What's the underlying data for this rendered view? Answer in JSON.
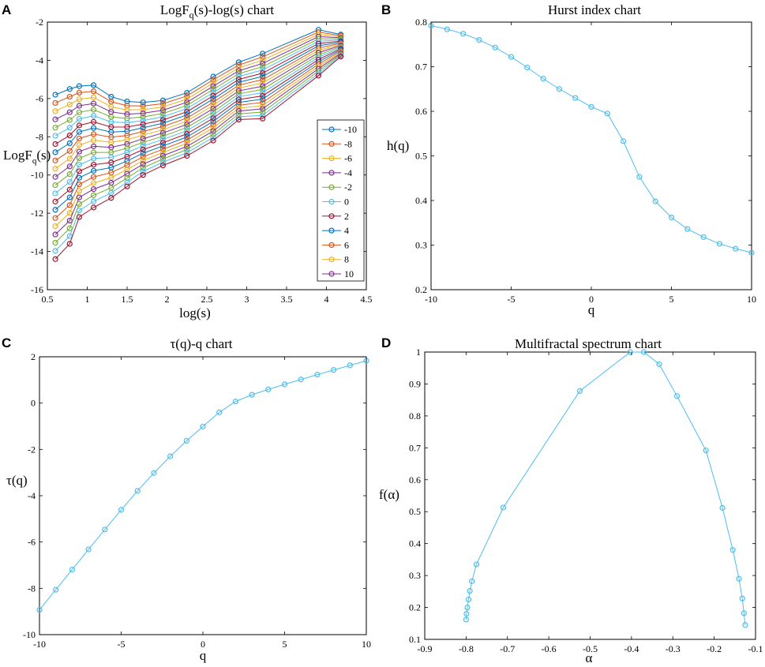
{
  "chart_data": [
    {
      "id": "A",
      "type": "line",
      "letter": "A",
      "title_main": "LogF",
      "title_sub": "q",
      "title_rest": "(s)-log(s) chart",
      "xlabel": "log(s)",
      "ylabel_main": "LogF",
      "ylabel_sub": "q",
      "ylabel_rest": "(s)",
      "xlim": [
        0.5,
        4.5
      ],
      "ylim": [
        -16,
        -2
      ],
      "xticks": [
        "0.5",
        "1",
        "1.5",
        "2",
        "2.5",
        "3",
        "3.5",
        "4",
        "4.5"
      ],
      "yticks": [
        "-16",
        "-14",
        "-12",
        "-10",
        "-8",
        "-6",
        "-4",
        "-2"
      ],
      "x": [
        0.6,
        0.78,
        0.9,
        1.08,
        1.3,
        1.5,
        1.7,
        1.95,
        2.25,
        2.58,
        2.9,
        3.2,
        3.9,
        4.18
      ],
      "q_values": [
        -10,
        -9,
        -8,
        -7,
        -6,
        -5,
        -4,
        -3,
        -2,
        -1,
        0,
        1,
        2,
        3,
        4,
        5,
        6,
        7,
        8,
        9,
        10
      ],
      "series_top": [
        -5.8,
        -5.5,
        -5.35,
        -5.3,
        -5.9,
        -6.15,
        -6.2,
        -6.1,
        -5.7,
        -4.85,
        -4.1,
        -3.65,
        -2.4,
        -2.65
      ],
      "series_bottom": [
        -14.4,
        -13.6,
        -12.2,
        -11.7,
        -11.2,
        -10.6,
        -10.0,
        -9.5,
        -9.0,
        -8.2,
        -7.1,
        -7.05,
        -4.8,
        -3.8
      ],
      "legend": [
        "-10",
        "-8",
        "-6",
        "-4",
        "-2",
        "0",
        "2",
        "4",
        "6",
        "8",
        "10"
      ],
      "legend_position": "right",
      "colors": [
        "#0072BD",
        "#D95319",
        "#EDB120",
        "#7E2F8E",
        "#77AC30",
        "#4DBEEE",
        "#A2142F",
        "#0072BD",
        "#D95319",
        "#EDB120",
        "#7E2F8E"
      ]
    },
    {
      "id": "B",
      "type": "line",
      "letter": "B",
      "title": "Hurst index chart",
      "xlabel": "q",
      "ylabel": "h(q)",
      "xlim": [
        -10,
        10
      ],
      "ylim": [
        0.2,
        0.8
      ],
      "xticks": [
        "-10",
        "-5",
        "0",
        "5",
        "10"
      ],
      "yticks": [
        "0.2",
        "0.3",
        "0.4",
        "0.5",
        "0.6",
        "0.7",
        "0.8"
      ],
      "x": [
        -10,
        -9,
        -8,
        -7,
        -6,
        -5,
        -4,
        -3,
        -2,
        -1,
        0,
        1,
        2,
        3,
        4,
        5,
        6,
        7,
        8,
        9,
        10
      ],
      "y": [
        0.792,
        0.784,
        0.774,
        0.76,
        0.743,
        0.722,
        0.698,
        0.673,
        0.65,
        0.63,
        0.61,
        0.595,
        0.533,
        0.453,
        0.398,
        0.362,
        0.336,
        0.318,
        0.303,
        0.292,
        0.283
      ],
      "color": "#4DBEEE"
    },
    {
      "id": "C",
      "type": "line",
      "letter": "C",
      "title": "τ(q)-q chart",
      "xlabel": "q",
      "ylabel": "τ(q)",
      "xlim": [
        -10,
        10
      ],
      "ylim": [
        -10,
        2
      ],
      "xticks": [
        "-10",
        "-5",
        "0",
        "5",
        "10"
      ],
      "yticks": [
        "-10",
        "-8",
        "-6",
        "-4",
        "-2",
        "0",
        "2"
      ],
      "x": [
        -10,
        -9,
        -8,
        -7,
        -6,
        -5,
        -4,
        -3,
        -2,
        -1,
        0,
        1,
        2,
        3,
        4,
        5,
        6,
        7,
        8,
        9,
        10
      ],
      "y": [
        -8.93,
        -8.06,
        -7.19,
        -6.32,
        -5.46,
        -4.61,
        -3.79,
        -3.02,
        -2.3,
        -1.63,
        -1.01,
        -0.4,
        0.07,
        0.36,
        0.59,
        0.81,
        1.02,
        1.23,
        1.43,
        1.63,
        1.83
      ],
      "color": "#4DBEEE"
    },
    {
      "id": "D",
      "type": "line",
      "letter": "D",
      "title": "Multifractal spectrum chart",
      "xlabel": "α",
      "ylabel": "f(α)",
      "xlim": [
        -0.9,
        -0.1
      ],
      "ylim": [
        0.1,
        1.0
      ],
      "xticks": [
        "-0.9",
        "-0.8",
        "-0.7",
        "-0.6",
        "-0.5",
        "-0.4",
        "-0.3",
        "-0.2",
        "-0.1"
      ],
      "yticks": [
        "0.1",
        "0.2",
        "0.3",
        "0.4",
        "0.5",
        "0.6",
        "0.7",
        "0.8",
        "0.9",
        "1"
      ],
      "x": [
        -0.8,
        -0.799,
        -0.797,
        -0.794,
        -0.791,
        -0.786,
        -0.775,
        -0.71,
        -0.525,
        -0.403,
        -0.37,
        -0.333,
        -0.29,
        -0.22,
        -0.18,
        -0.155,
        -0.14,
        -0.132,
        -0.128,
        -0.125
      ],
      "y": [
        0.162,
        0.18,
        0.2,
        0.225,
        0.252,
        0.282,
        0.335,
        0.513,
        0.878,
        1.0,
        1.0,
        0.962,
        0.862,
        0.692,
        0.512,
        0.38,
        0.29,
        0.228,
        0.182,
        0.145
      ],
      "color": "#4DBEEE"
    }
  ]
}
